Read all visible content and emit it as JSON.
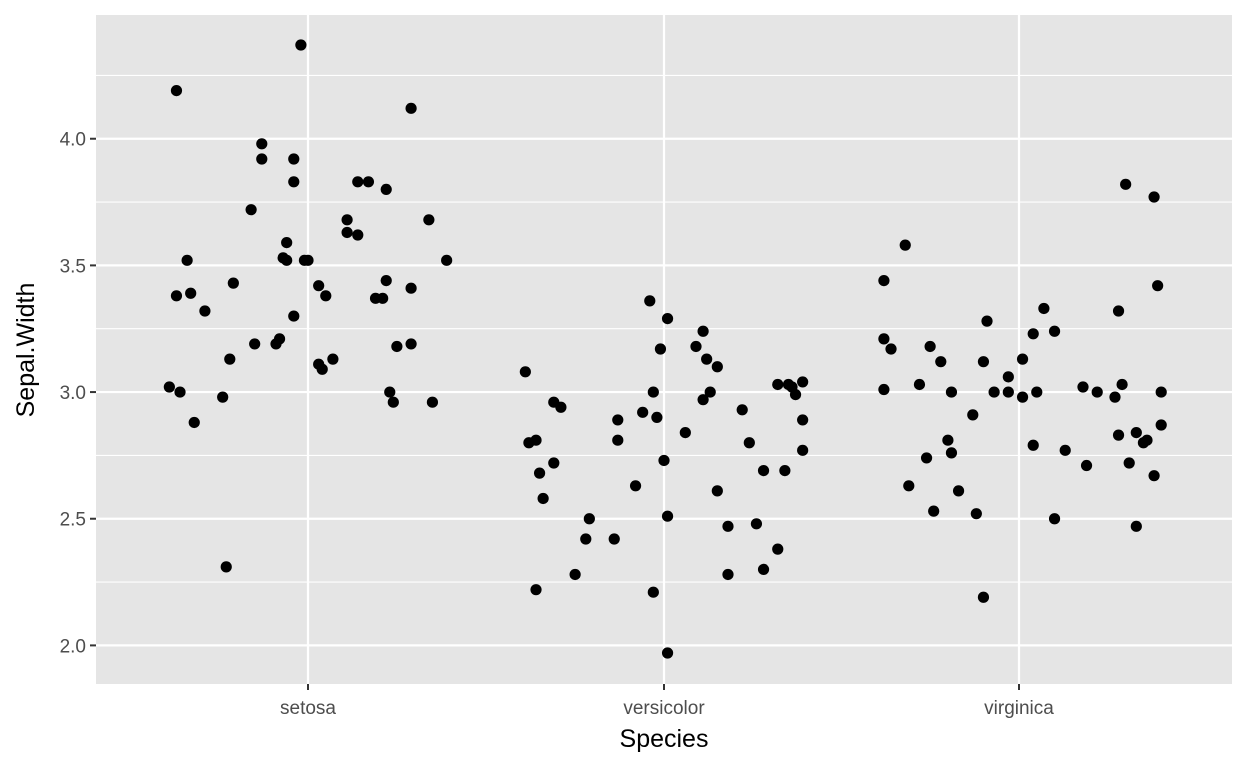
{
  "chart_data": {
    "type": "scatter",
    "title": "",
    "xlabel": "Species",
    "ylabel": "Sepal.Width",
    "categories": [
      "setosa",
      "versicolor",
      "virginica"
    ],
    "ylim": [
      1.85,
      4.42
    ],
    "y_ticks": [
      2.0,
      2.5,
      3.0,
      3.5,
      4.0
    ],
    "y_tick_labels": [
      "2.0",
      "2.5",
      "3.0",
      "3.5",
      "4.0"
    ],
    "grid": true,
    "jitter": true,
    "colors": {
      "panel": "#e5e5e5",
      "grid": "#ffffff",
      "point": "#000000"
    },
    "series": [
      {
        "category": "setosa",
        "points": [
          [
            -0.37,
            4.19
          ],
          [
            -0.39,
            3.02
          ],
          [
            -0.37,
            3.38
          ],
          [
            -0.36,
            3.0
          ],
          [
            -0.34,
            3.52
          ],
          [
            -0.33,
            3.39
          ],
          [
            -0.32,
            2.88
          ],
          [
            -0.29,
            3.32
          ],
          [
            -0.24,
            2.98
          ],
          [
            -0.23,
            2.31
          ],
          [
            -0.22,
            3.13
          ],
          [
            -0.21,
            3.43
          ],
          [
            -0.16,
            3.72
          ],
          [
            -0.15,
            3.19
          ],
          [
            -0.13,
            3.92
          ],
          [
            -0.13,
            3.98
          ],
          [
            -0.09,
            3.19
          ],
          [
            -0.08,
            3.21
          ],
          [
            -0.07,
            3.53
          ],
          [
            -0.06,
            3.52
          ],
          [
            -0.06,
            3.59
          ],
          [
            -0.04,
            3.92
          ],
          [
            -0.04,
            3.83
          ],
          [
            -0.04,
            3.3
          ],
          [
            -0.02,
            4.37
          ],
          [
            0.0,
            3.52
          ],
          [
            0.03,
            3.42
          ],
          [
            0.03,
            3.11
          ],
          [
            0.04,
            3.09
          ],
          [
            0.05,
            3.38
          ],
          [
            0.07,
            3.13
          ],
          [
            0.11,
            3.68
          ],
          [
            0.11,
            3.63
          ],
          [
            0.14,
            3.62
          ],
          [
            0.14,
            3.83
          ],
          [
            0.17,
            3.83
          ],
          [
            0.19,
            3.37
          ],
          [
            0.21,
            3.37
          ],
          [
            0.22,
            3.44
          ],
          [
            0.22,
            3.8
          ],
          [
            0.23,
            3.0
          ],
          [
            0.24,
            2.96
          ],
          [
            0.25,
            3.18
          ],
          [
            0.29,
            3.41
          ],
          [
            0.29,
            3.19
          ],
          [
            0.29,
            4.12
          ],
          [
            0.34,
            3.68
          ],
          [
            0.35,
            2.96
          ],
          [
            0.39,
            3.52
          ],
          [
            -0.01,
            3.52
          ]
        ]
      },
      {
        "category": "versicolor",
        "points": [
          [
            -0.39,
            3.08
          ],
          [
            -0.38,
            2.8
          ],
          [
            -0.36,
            2.22
          ],
          [
            -0.36,
            2.81
          ],
          [
            -0.35,
            2.68
          ],
          [
            -0.34,
            2.58
          ],
          [
            -0.31,
            2.96
          ],
          [
            -0.31,
            2.72
          ],
          [
            -0.29,
            2.94
          ],
          [
            -0.25,
            2.28
          ],
          [
            -0.22,
            2.42
          ],
          [
            -0.21,
            2.5
          ],
          [
            -0.14,
            2.42
          ],
          [
            -0.13,
            2.89
          ],
          [
            -0.13,
            2.81
          ],
          [
            -0.08,
            2.63
          ],
          [
            -0.06,
            2.92
          ],
          [
            -0.04,
            3.36
          ],
          [
            -0.03,
            3.0
          ],
          [
            -0.03,
            2.21
          ],
          [
            -0.02,
            2.9
          ],
          [
            -0.01,
            3.17
          ],
          [
            0.0,
            2.73
          ],
          [
            0.01,
            1.97
          ],
          [
            0.01,
            3.29
          ],
          [
            0.01,
            2.51
          ],
          [
            0.06,
            2.84
          ],
          [
            0.09,
            3.18
          ],
          [
            0.11,
            3.24
          ],
          [
            0.11,
            2.97
          ],
          [
            0.12,
            3.13
          ],
          [
            0.13,
            3.0
          ],
          [
            0.15,
            3.1
          ],
          [
            0.15,
            2.61
          ],
          [
            0.18,
            2.28
          ],
          [
            0.18,
            2.47
          ],
          [
            0.22,
            2.93
          ],
          [
            0.24,
            2.8
          ],
          [
            0.26,
            2.48
          ],
          [
            0.28,
            2.69
          ],
          [
            0.28,
            2.3
          ],
          [
            0.32,
            2.38
          ],
          [
            0.32,
            3.03
          ],
          [
            0.34,
            2.69
          ],
          [
            0.36,
            3.02
          ],
          [
            0.37,
            2.99
          ],
          [
            0.39,
            3.04
          ],
          [
            0.39,
            2.89
          ],
          [
            0.39,
            2.77
          ],
          [
            0.35,
            3.03
          ]
        ]
      },
      {
        "category": "virginica",
        "points": [
          [
            -0.38,
            3.44
          ],
          [
            -0.38,
            3.21
          ],
          [
            -0.38,
            3.01
          ],
          [
            -0.36,
            3.17
          ],
          [
            -0.32,
            3.58
          ],
          [
            -0.31,
            2.63
          ],
          [
            -0.28,
            3.03
          ],
          [
            -0.26,
            2.74
          ],
          [
            -0.25,
            3.18
          ],
          [
            -0.24,
            2.53
          ],
          [
            -0.22,
            3.12
          ],
          [
            -0.2,
            2.81
          ],
          [
            -0.19,
            2.76
          ],
          [
            -0.19,
            3.0
          ],
          [
            -0.17,
            2.61
          ],
          [
            -0.13,
            2.91
          ],
          [
            -0.12,
            2.52
          ],
          [
            -0.1,
            3.12
          ],
          [
            -0.1,
            2.19
          ],
          [
            -0.09,
            3.28
          ],
          [
            -0.07,
            3.0
          ],
          [
            -0.03,
            3.06
          ],
          [
            -0.03,
            3.0
          ],
          [
            0.01,
            3.13
          ],
          [
            0.01,
            2.98
          ],
          [
            0.04,
            3.23
          ],
          [
            0.04,
            2.79
          ],
          [
            0.05,
            3.0
          ],
          [
            0.07,
            3.33
          ],
          [
            0.1,
            3.24
          ],
          [
            0.1,
            2.5
          ],
          [
            0.13,
            2.77
          ],
          [
            0.18,
            3.02
          ],
          [
            0.19,
            2.71
          ],
          [
            0.22,
            3.0
          ],
          [
            0.27,
            2.98
          ],
          [
            0.28,
            2.83
          ],
          [
            0.28,
            3.32
          ],
          [
            0.29,
            3.03
          ],
          [
            0.3,
            3.82
          ],
          [
            0.31,
            2.72
          ],
          [
            0.33,
            2.47
          ],
          [
            0.33,
            2.84
          ],
          [
            0.35,
            2.8
          ],
          [
            0.36,
            2.81
          ],
          [
            0.38,
            2.67
          ],
          [
            0.38,
            3.77
          ],
          [
            0.39,
            3.42
          ],
          [
            0.4,
            3.0
          ],
          [
            0.4,
            2.87
          ]
        ]
      }
    ]
  }
}
